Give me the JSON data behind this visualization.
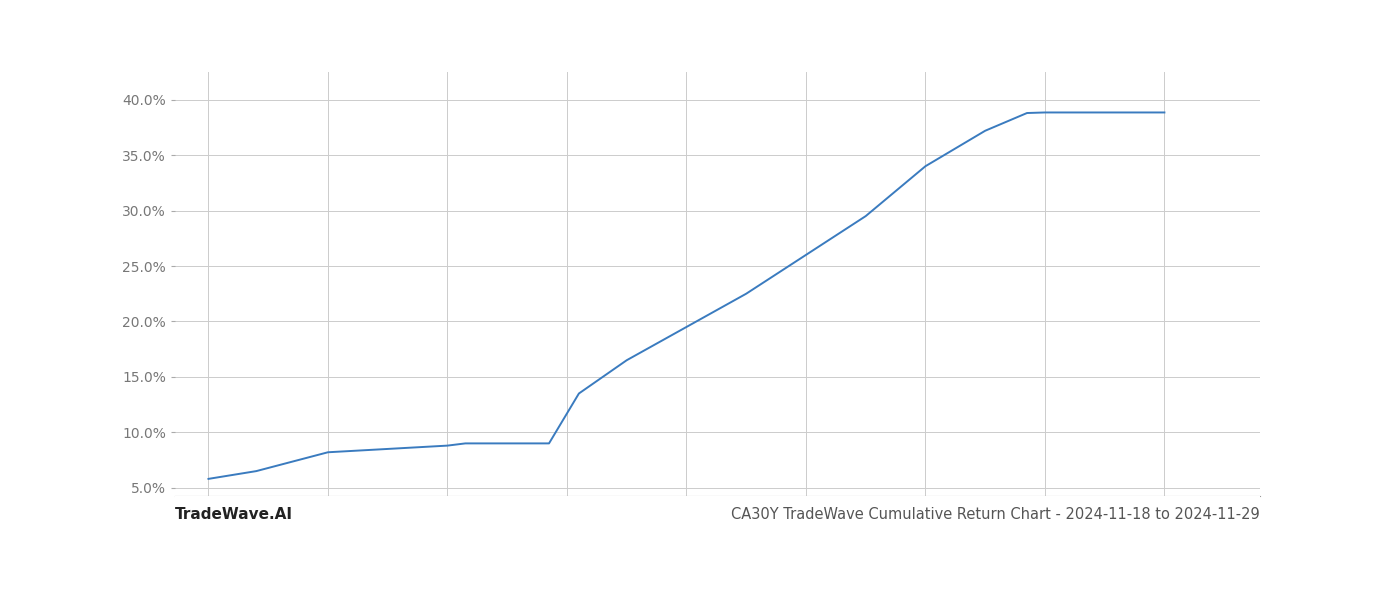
{
  "x": [
    2016.0,
    2016.4,
    2017.0,
    2017.5,
    2018.0,
    2018.15,
    2018.4,
    2018.85,
    2019.1,
    2019.5,
    2020.0,
    2020.5,
    2021.0,
    2021.5,
    2022.0,
    2022.5,
    2022.85,
    2023.0,
    2023.3,
    2023.9,
    2024.0
  ],
  "y": [
    5.8,
    6.5,
    8.2,
    8.5,
    8.8,
    9.0,
    9.0,
    9.0,
    13.5,
    16.5,
    19.5,
    22.5,
    26.0,
    29.5,
    34.0,
    37.2,
    38.8,
    38.85,
    38.85,
    38.85,
    38.85
  ],
  "line_color": "#3a7bbf",
  "line_width": 1.4,
  "background_color": "#ffffff",
  "grid_color": "#cccccc",
  "title": "CA30Y TradeWave Cumulative Return Chart - 2024-11-18 to 2024-11-29",
  "title_fontsize": 10.5,
  "title_color": "#555555",
  "watermark_text": "TradeWave.AI",
  "watermark_fontsize": 11,
  "watermark_color": "#222222",
  "yticks": [
    5.0,
    10.0,
    15.0,
    20.0,
    25.0,
    30.0,
    35.0,
    40.0
  ],
  "xticks": [
    2016,
    2017,
    2018,
    2019,
    2020,
    2021,
    2022,
    2023,
    2024
  ],
  "ylim": [
    4.3,
    42.5
  ],
  "xlim": [
    2015.72,
    2024.8
  ]
}
